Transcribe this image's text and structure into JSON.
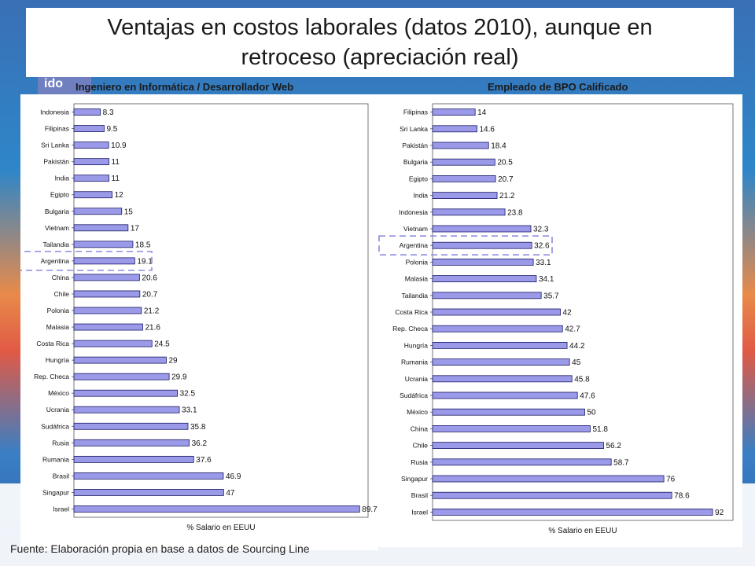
{
  "slide": {
    "title": "Ventajas en costos laborales (datos 2010), aunque en retroceso (apreciación real)",
    "logo_text": "ido",
    "footnote": "Fuente: Elaboración propia en base a datos de Sourcing Line",
    "colors": {
      "bar_fill": "#9a9ae8",
      "bar_stroke": "#1a1a66",
      "highlight": "#8c8ce0"
    }
  },
  "chart_data": [
    {
      "type": "bar",
      "orientation": "horizontal",
      "title": "Ingeniero en Informática / Desarrollador Web",
      "xlabel": "% Salario en EEUU",
      "highlight": "Argentina",
      "categories": [
        "Indonesia",
        "Filipinas",
        "Sri Lanka",
        "Pakistán",
        "India",
        "Egipto",
        "Bulgaria",
        "Vietnam",
        "Tailandia",
        "Argentina",
        "China",
        "Chile",
        "Polonia",
        "Malasia",
        "Costa Rica",
        "Hungría",
        "Rep. Checa",
        "México",
        "Ucrania",
        "Sudáfrica",
        "Rusia",
        "Rumania",
        "Brasil",
        "Singapur",
        "Israel"
      ],
      "values": [
        8.3,
        9.5,
        10.9,
        11,
        11,
        12,
        15,
        17,
        18.5,
        19.1,
        20.6,
        20.7,
        21.2,
        21.6,
        24.5,
        29,
        29.9,
        32.5,
        33.1,
        35.8,
        36.2,
        37.6,
        46.9,
        47,
        89.7
      ],
      "value_labels": [
        "8.3",
        "9.5",
        "10.9",
        "11",
        "11",
        "12",
        "15",
        "17",
        "18.5",
        "19.1",
        "20.6",
        "20.7",
        "21.2",
        "21.6",
        "24.5",
        "29",
        "29.9",
        "32.5",
        "33.1",
        "35.8",
        "36.2",
        "37.6",
        "46.9",
        "47",
        "89.7"
      ],
      "xlim": [
        0,
        100
      ]
    },
    {
      "type": "bar",
      "orientation": "horizontal",
      "title": "Empleado de BPO Calificado",
      "xlabel": "% Salario en EEUU",
      "highlight": "Argentina",
      "categories": [
        "Filipinas",
        "Sri Lanka",
        "Pakistán",
        "Bulgaria",
        "Egipto",
        "India",
        "Indonesia",
        "Vietnam",
        "Argentina",
        "Polonia",
        "Malasia",
        "Tailandia",
        "Costa Rica",
        "Rep. Checa",
        "Hungría",
        "Rumania",
        "Ucrania",
        "Sudáfrica",
        "México",
        "China",
        "Chile",
        "Rusia",
        "Singapur",
        "Brasil",
        "Israel"
      ],
      "values": [
        14,
        14.6,
        18.4,
        20.5,
        20.7,
        21.2,
        23.8,
        32.3,
        32.6,
        33.1,
        34.1,
        35.7,
        42,
        42.7,
        44.2,
        45,
        45.8,
        47.6,
        50,
        51.8,
        56.2,
        58.7,
        76,
        78.6,
        92
      ],
      "value_labels": [
        "14",
        "14.6",
        "18.4",
        "20.5",
        "20.7",
        "21.2",
        "23.8",
        "32.3",
        "32.6",
        "33.1",
        "34.1",
        "35.7",
        "42",
        "42.7",
        "44.2",
        "45",
        "45.8",
        "47.6",
        "50",
        "51.8",
        "56.2",
        "58.7",
        "76",
        "78.6",
        "92"
      ],
      "xlim": [
        0,
        100
      ]
    }
  ]
}
